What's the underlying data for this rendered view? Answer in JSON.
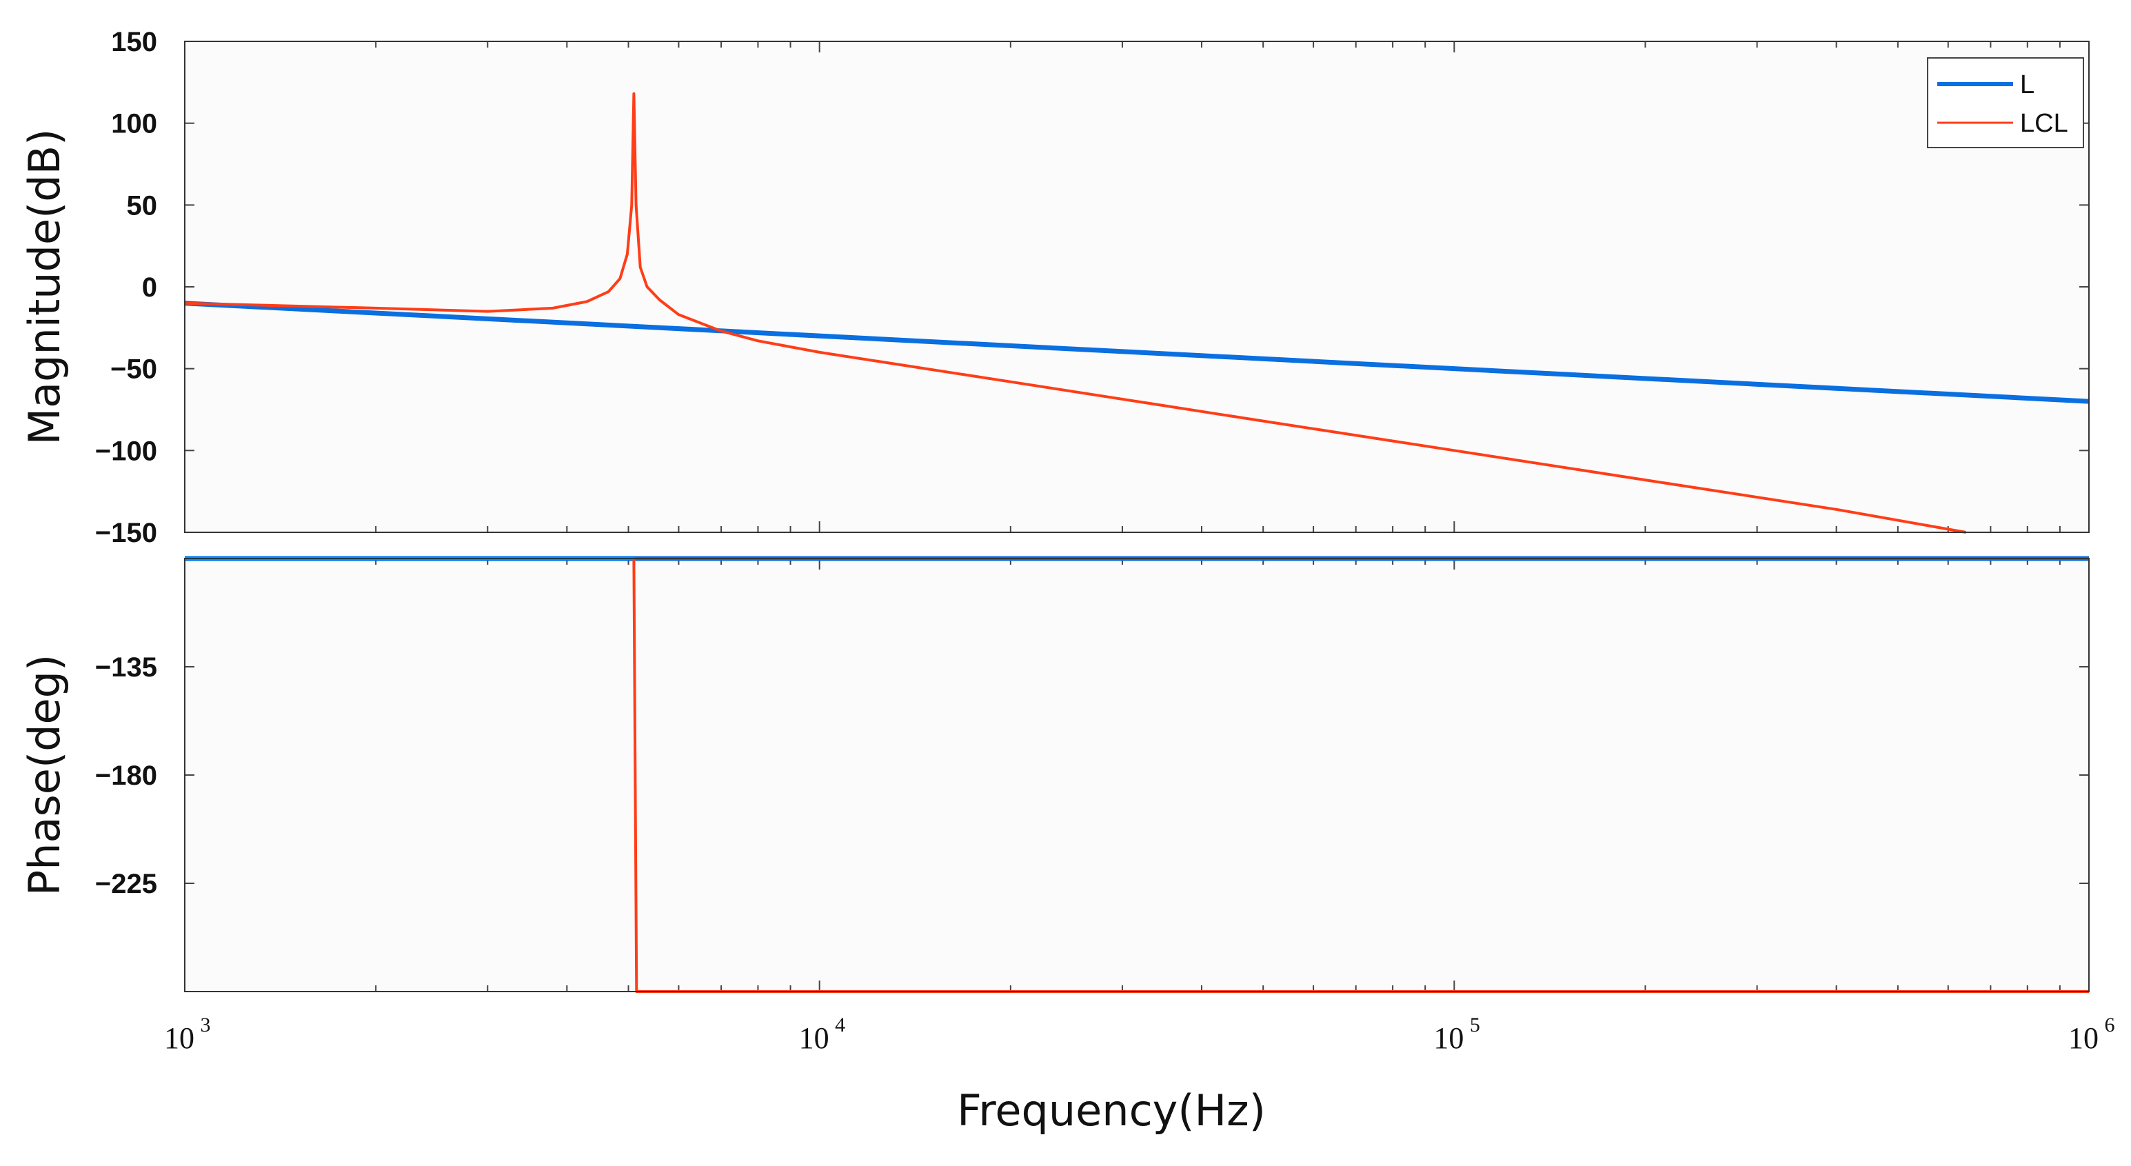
{
  "chart_data": {
    "type": "line",
    "subtype": "bode",
    "x_scale": "log",
    "xlim": [
      1000,
      1000000
    ],
    "xlabel": "Frequency(Hz)",
    "x_ticks": [
      {
        "value": 1000,
        "base": "10",
        "exp": "3"
      },
      {
        "value": 10000,
        "base": "10",
        "exp": "4"
      },
      {
        "value": 100000,
        "base": "10",
        "exp": "5"
      },
      {
        "value": 1000000,
        "base": "10",
        "exp": "6"
      }
    ],
    "legend": {
      "placement": "top-right",
      "entries": [
        {
          "name": "L",
          "color": "#0a6fe0"
        },
        {
          "name": "LCL",
          "color": "#ff3d17"
        }
      ]
    },
    "panels": [
      {
        "name": "magnitude",
        "ylabel": "Magnitude(dB)",
        "ylim": [
          -150,
          150
        ],
        "y_ticks": [
          "150",
          "100",
          "50",
          "0",
          "−50",
          "−100",
          "−150"
        ],
        "y_tick_values": [
          150,
          100,
          50,
          0,
          -50,
          -100,
          -150
        ],
        "series": [
          {
            "name": "L",
            "color": "#0a6fe0",
            "x": [
              1000,
              1000000
            ],
            "y": [
              -10,
              -70
            ]
          },
          {
            "name": "LCL",
            "color": "#ff3d17",
            "resonance_hz": 5100,
            "resonance_peak_db": 118,
            "x": [
              1000,
              2000,
              3000,
              3800,
              4300,
              4650,
              4850,
              4980,
              5060,
              5100,
              5140,
              5220,
              5350,
              5600,
              6000,
              7000,
              8000,
              10000,
              20000,
              50000,
              100000,
              200000,
              400000,
              640000
            ],
            "y": [
              -10,
              -13,
              -15,
              -13,
              -9,
              -3,
              5,
              20,
              50,
              118,
              50,
              12,
              0,
              -8,
              -17,
              -27,
              -33,
              -40,
              -58,
              -82,
              -100,
              -118,
              -136,
              -150
            ]
          }
        ]
      },
      {
        "name": "phase",
        "ylabel": "Phase(deg)",
        "ylim": [
          -270,
          -90
        ],
        "y_ticks": [
          "−135",
          "−180",
          "−225"
        ],
        "y_tick_values": [
          -135,
          -180,
          -225
        ],
        "series": [
          {
            "name": "L",
            "color": "#0a6fe0",
            "x": [
              1000,
              1000000
            ],
            "y": [
              -90,
              -90
            ]
          },
          {
            "name": "LCL",
            "color": "#ff3d17",
            "x": [
              1000,
              5100,
              5150,
              1000000
            ],
            "y": [
              -90,
              -90,
              -270,
              -270
            ]
          }
        ]
      }
    ]
  }
}
